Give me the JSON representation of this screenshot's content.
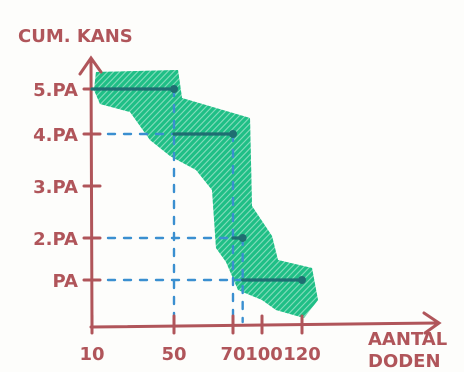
{
  "chart_data": {
    "type": "line",
    "step": true,
    "ylabel": "CUM. KANS",
    "xlabel_line1": "AANTAL",
    "xlabel_line2": "DODEN",
    "x_ticks": [
      "10",
      "50",
      "70",
      "100",
      "120"
    ],
    "x_values": [
      10,
      50,
      70,
      100,
      120
    ],
    "y_ticks": [
      "PA",
      "2.PA",
      "3.PA",
      "4.PA",
      "5.PA"
    ],
    "y_values": [
      1,
      2,
      3,
      4,
      5
    ],
    "series": [
      {
        "segments": [
          {
            "x0": 10,
            "x1": 50,
            "y": 5
          },
          {
            "x0": 50,
            "x1": 70,
            "y": 4
          },
          {
            "x0": 70,
            "x1": 80,
            "y": 2
          },
          {
            "x0": 80,
            "x1": 120,
            "y": 1
          }
        ]
      }
    ],
    "band_note": "hatched green uncertainty band around the step curve",
    "colors": {
      "axis": "#b0555a",
      "line": "#1f6e72",
      "band": "#1fbf86",
      "guide": "#3a8fd0"
    }
  }
}
